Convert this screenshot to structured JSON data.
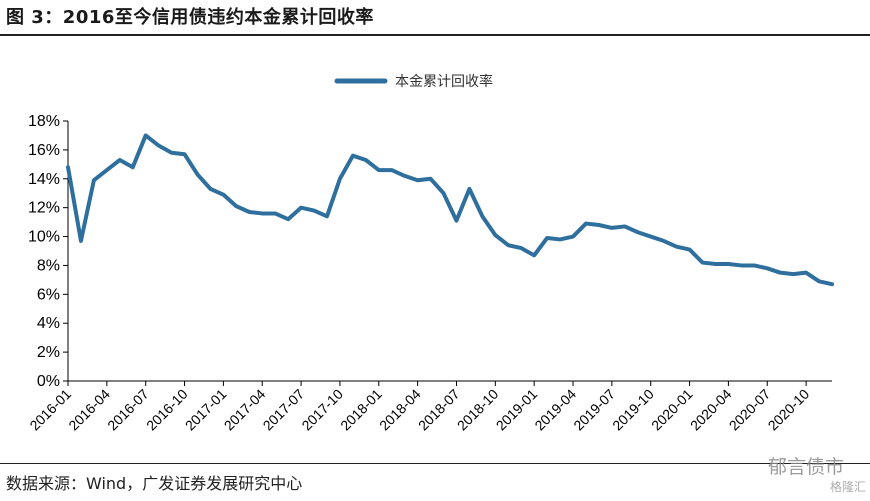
{
  "header": {
    "figure_title": "图 3：2016至今信用债违约本金累计回收率"
  },
  "footer": {
    "source": "数据来源：Wind，广发证券发展研究中心",
    "watermark": "郁言债市",
    "watermark_small": "格隆汇"
  },
  "colors": {
    "line": "#2e6f9e",
    "axis": "#000000"
  },
  "chart_data": {
    "type": "line",
    "title": "",
    "xlabel": "",
    "ylabel": "",
    "legend_position": "top-center",
    "grid": false,
    "ylim": [
      0,
      18
    ],
    "y_ticks": [
      "0%",
      "2%",
      "4%",
      "6%",
      "8%",
      "10%",
      "12%",
      "14%",
      "16%",
      "18%"
    ],
    "x_tick_labels": [
      "2016-01",
      "2016-04",
      "2016-07",
      "2016-10",
      "2017-01",
      "2017-04",
      "2017-07",
      "2017-10",
      "2018-01",
      "2018-04",
      "2018-07",
      "2018-10",
      "2019-01",
      "2019-04",
      "2019-07",
      "2019-10",
      "2020-01",
      "2020-04",
      "2020-07",
      "2020-10"
    ],
    "x": [
      "2016-01",
      "2016-02",
      "2016-03",
      "2016-04",
      "2016-05",
      "2016-06",
      "2016-07",
      "2016-08",
      "2016-09",
      "2016-10",
      "2016-11",
      "2016-12",
      "2017-01",
      "2017-02",
      "2017-03",
      "2017-04",
      "2017-05",
      "2017-06",
      "2017-07",
      "2017-08",
      "2017-09",
      "2017-10",
      "2017-11",
      "2017-12",
      "2018-01",
      "2018-02",
      "2018-03",
      "2018-04",
      "2018-05",
      "2018-06",
      "2018-07",
      "2018-08",
      "2018-09",
      "2018-10",
      "2018-11",
      "2018-12",
      "2019-01",
      "2019-02",
      "2019-03",
      "2019-04",
      "2019-05",
      "2019-06",
      "2019-07",
      "2019-08",
      "2019-09",
      "2019-10",
      "2019-11",
      "2019-12",
      "2020-01",
      "2020-02",
      "2020-03",
      "2020-04",
      "2020-05",
      "2020-06",
      "2020-07",
      "2020-08",
      "2020-09",
      "2020-10",
      "2020-11",
      "2020-12"
    ],
    "series": [
      {
        "name": "本金累计回收率",
        "values": [
          14.8,
          9.7,
          13.9,
          14.6,
          15.3,
          14.8,
          17.0,
          16.3,
          15.8,
          15.7,
          14.3,
          13.3,
          12.9,
          12.1,
          11.7,
          11.6,
          11.6,
          11.2,
          12.0,
          11.8,
          11.4,
          14.0,
          15.6,
          15.3,
          14.6,
          14.6,
          14.2,
          13.9,
          14.0,
          13.0,
          11.1,
          13.3,
          11.4,
          10.1,
          9.4,
          9.2,
          8.7,
          9.9,
          9.8,
          10.0,
          10.9,
          10.8,
          10.6,
          10.7,
          10.3,
          10.0,
          9.7,
          9.3,
          9.1,
          8.2,
          8.1,
          8.1,
          8.0,
          8.0,
          7.8,
          7.5,
          7.4,
          7.5,
          6.9,
          6.7
        ]
      }
    ]
  }
}
